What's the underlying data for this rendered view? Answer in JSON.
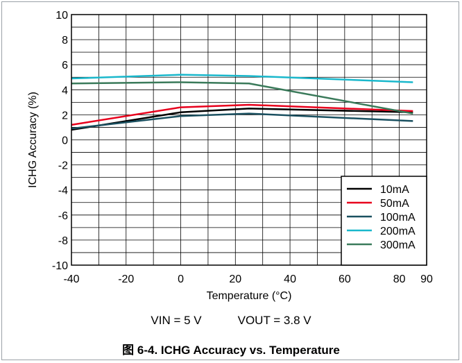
{
  "chart_data": {
    "type": "line",
    "xlabel": "Temperature (°C)",
    "ylabel": "ICHG Accuracy (%)",
    "xlim": [
      -40,
      90
    ],
    "ylim": [
      -10,
      10
    ],
    "x_ticks": [
      -40,
      -20,
      0,
      20,
      40,
      60,
      80,
      90
    ],
    "y_ticks": [
      -10,
      -8,
      -6,
      -4,
      -2,
      0,
      2,
      4,
      6,
      8,
      10
    ],
    "grid": true,
    "legend_position": "bottom-right",
    "series": [
      {
        "name": "10mA",
        "color": "#000000",
        "x": [
          -40,
          0,
          25,
          85
        ],
        "y": [
          0.8,
          2.2,
          2.5,
          2.2
        ]
      },
      {
        "name": "50mA",
        "color": "#e8001c",
        "x": [
          -40,
          0,
          25,
          85
        ],
        "y": [
          1.2,
          2.6,
          2.8,
          2.3
        ]
      },
      {
        "name": "100mA",
        "color": "#1a5060",
        "x": [
          -40,
          0,
          25,
          85
        ],
        "y": [
          0.9,
          1.9,
          2.1,
          1.5
        ]
      },
      {
        "name": "200mA",
        "color": "#1ab8cc",
        "x": [
          -40,
          0,
          25,
          85
        ],
        "y": [
          4.9,
          5.2,
          5.1,
          4.6
        ]
      },
      {
        "name": "300mA",
        "color": "#3a7a5a",
        "x": [
          -40,
          0,
          25,
          85
        ],
        "y": [
          4.5,
          4.6,
          4.5,
          2.1
        ]
      }
    ]
  },
  "conditions": {
    "vin": "VIN = 5 V",
    "vout": "VOUT = 3.8 V"
  },
  "caption": "图 6-4. ICHG Accuracy vs. Temperature"
}
